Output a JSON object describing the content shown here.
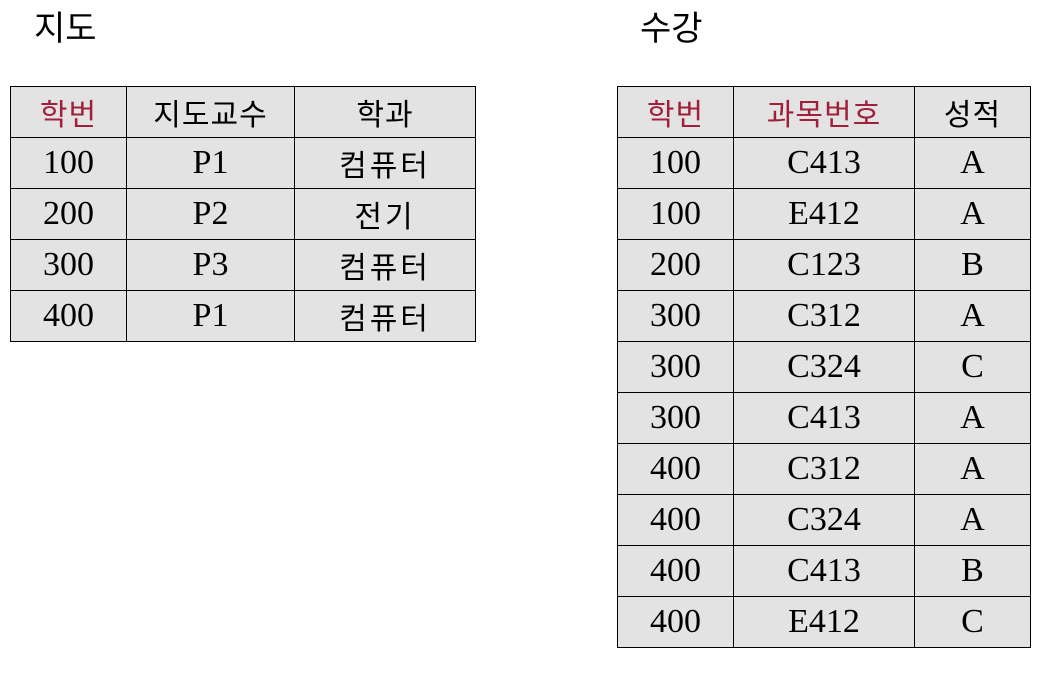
{
  "left_table": {
    "title": "지도",
    "headers": [
      "학번",
      "지도교수",
      "학과"
    ],
    "rows": [
      [
        "100",
        "P1",
        "컴퓨터"
      ],
      [
        "200",
        "P2",
        "전기"
      ],
      [
        "300",
        "P3",
        "컴퓨터"
      ],
      [
        "400",
        "P1",
        "컴퓨터"
      ]
    ]
  },
  "right_table": {
    "title": "수강",
    "headers": [
      "학번",
      "과목번호",
      "성적"
    ],
    "rows": [
      [
        "100",
        "C413",
        "A"
      ],
      [
        "100",
        "E412",
        "A"
      ],
      [
        "200",
        "C123",
        "B"
      ],
      [
        "300",
        "C312",
        "A"
      ],
      [
        "300",
        "C324",
        "C"
      ],
      [
        "300",
        "C413",
        "A"
      ],
      [
        "400",
        "C312",
        "A"
      ],
      [
        "400",
        "C324",
        "A"
      ],
      [
        "400",
        "C413",
        "B"
      ],
      [
        "400",
        "E412",
        "C"
      ]
    ]
  },
  "colors": {
    "key_header": "#a0203a",
    "cell_background": "#e3e3e3",
    "border": "#000000"
  }
}
